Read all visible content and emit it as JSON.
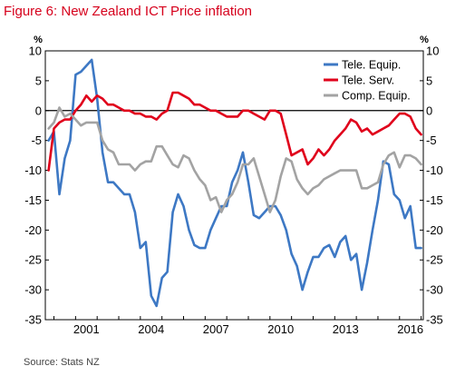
{
  "figure": {
    "title": "Figure 6: New Zealand ICT Price inflation",
    "source": "Source: Stats NZ"
  },
  "colors": {
    "title": "#d6001c",
    "tele_equip": "#3d78c4",
    "tele_serv": "#e0001b",
    "comp_equip": "#a3a3a3"
  },
  "chart_data": {
    "type": "line",
    "title": "",
    "xlabel": "",
    "ylabel": "%",
    "ylabel_right": "%",
    "xlim": [
      1999.6,
      2017.1
    ],
    "ylim": [
      -35,
      10
    ],
    "x_ticks": [
      2001,
      2004,
      2007,
      2010,
      2013,
      2016
    ],
    "x_tick_labels": [
      "2001",
      "2004",
      "2007",
      "2010",
      "2013",
      "2016"
    ],
    "y_ticks": [
      10,
      5,
      0,
      -5,
      -10,
      -15,
      -20,
      -25,
      -30,
      -35
    ],
    "y_tick_labels": [
      "10",
      "5",
      "0",
      "-5",
      "-10",
      "-15",
      "-20",
      "-25",
      "-30",
      "-35"
    ],
    "y_tick_labels_right": [
      "10",
      "5",
      "0",
      "-5",
      "-10",
      "-15",
      "-20",
      "-25",
      "-30",
      "-35"
    ],
    "zero_line": true,
    "grid": false,
    "legend_position": "top-right",
    "series": [
      {
        "name": "Tele. Equip.",
        "color": "#3d78c4",
        "x": [
          1999.75,
          2000.0,
          2000.25,
          2000.5,
          2000.75,
          2001.0,
          2001.25,
          2001.5,
          2001.75,
          2002.0,
          2002.25,
          2002.5,
          2002.75,
          2003.0,
          2003.25,
          2003.5,
          2003.75,
          2004.0,
          2004.25,
          2004.5,
          2004.75,
          2005.0,
          2005.25,
          2005.5,
          2005.75,
          2006.0,
          2006.25,
          2006.5,
          2006.75,
          2007.0,
          2007.25,
          2007.5,
          2007.75,
          2008.0,
          2008.25,
          2008.5,
          2008.75,
          2009.0,
          2009.25,
          2009.5,
          2009.75,
          2010.0,
          2010.25,
          2010.5,
          2010.75,
          2011.0,
          2011.25,
          2011.5,
          2011.75,
          2012.0,
          2012.25,
          2012.5,
          2012.75,
          2013.0,
          2013.25,
          2013.5,
          2013.75,
          2014.0,
          2014.25,
          2014.5,
          2014.75,
          2015.0,
          2015.25,
          2015.5,
          2015.75,
          2016.0,
          2016.25,
          2016.5,
          2016.75,
          2017.0
        ],
        "y": [
          -5,
          -3.5,
          -14,
          -8,
          -5,
          6,
          6.5,
          7.5,
          8.5,
          2,
          -7,
          -12,
          -12,
          -13,
          -14,
          -14,
          -17,
          -23,
          -22,
          -31,
          -32.7,
          -28,
          -27,
          -17,
          -14,
          -16,
          -20,
          -22.5,
          -23,
          -23,
          -20,
          -18,
          -16,
          -16,
          -12,
          -10,
          -7,
          -12,
          -17.5,
          -18,
          -17,
          -16,
          -16,
          -17.5,
          -20,
          -24,
          -26,
          -30,
          -27,
          -24.5,
          -24.5,
          -23,
          -22.5,
          -24.5,
          -22,
          -21,
          -25,
          -24,
          -30,
          -25.5,
          -20,
          -15,
          -8.5,
          -9,
          -14,
          -15,
          -18,
          -16,
          -23,
          -23
        ]
      },
      {
        "name": "Tele. Serv.",
        "color": "#e0001b",
        "x": [
          1999.75,
          2000.0,
          2000.25,
          2000.5,
          2000.75,
          2001.0,
          2001.25,
          2001.5,
          2001.75,
          2002.0,
          2002.25,
          2002.5,
          2002.75,
          2003.0,
          2003.25,
          2003.5,
          2003.75,
          2004.0,
          2004.25,
          2004.5,
          2004.75,
          2005.0,
          2005.25,
          2005.5,
          2005.75,
          2006.0,
          2006.25,
          2006.5,
          2006.75,
          2007.0,
          2007.25,
          2007.5,
          2007.75,
          2008.0,
          2008.25,
          2008.5,
          2008.75,
          2009.0,
          2009.25,
          2009.5,
          2009.75,
          2010.0,
          2010.25,
          2010.5,
          2010.75,
          2011.0,
          2011.25,
          2011.5,
          2011.75,
          2012.0,
          2012.25,
          2012.5,
          2012.75,
          2013.0,
          2013.25,
          2013.5,
          2013.75,
          2014.0,
          2014.25,
          2014.5,
          2014.75,
          2015.0,
          2015.25,
          2015.5,
          2015.75,
          2016.0,
          2016.25,
          2016.5,
          2016.75,
          2017.0
        ],
        "y": [
          -10,
          -3,
          -2,
          -1.5,
          -1.5,
          0,
          1,
          2.5,
          1.5,
          2.5,
          2,
          1,
          1,
          0.5,
          0,
          0,
          -0.5,
          -0.5,
          -1,
          -1,
          -1.5,
          -0.5,
          0,
          3,
          3,
          2.5,
          2,
          1,
          1,
          0.5,
          0,
          0,
          -0.5,
          -1,
          -1,
          -1,
          0,
          0,
          -0.5,
          -1,
          -1.5,
          0,
          0,
          -0.5,
          -4,
          -7.5,
          -7,
          -6.5,
          -9,
          -8,
          -6.5,
          -7.5,
          -6.5,
          -5,
          -4,
          -3,
          -1.5,
          -2,
          -3.5,
          -3,
          -4,
          -3.5,
          -3,
          -2.5,
          -1.5,
          -0.5,
          -0.5,
          -1,
          -3,
          -4
        ]
      },
      {
        "name": "Comp. Equip.",
        "color": "#a3a3a3",
        "x": [
          1999.75,
          2000.0,
          2000.25,
          2000.5,
          2000.75,
          2001.0,
          2001.25,
          2001.5,
          2001.75,
          2002.0,
          2002.25,
          2002.5,
          2002.75,
          2003.0,
          2003.25,
          2003.5,
          2003.75,
          2004.0,
          2004.25,
          2004.5,
          2004.75,
          2005.0,
          2005.25,
          2005.5,
          2005.75,
          2006.0,
          2006.25,
          2006.5,
          2006.75,
          2007.0,
          2007.25,
          2007.5,
          2007.75,
          2008.0,
          2008.25,
          2008.5,
          2008.75,
          2009.0,
          2009.25,
          2009.5,
          2009.75,
          2010.0,
          2010.25,
          2010.5,
          2010.75,
          2011.0,
          2011.25,
          2011.5,
          2011.75,
          2012.0,
          2012.25,
          2012.5,
          2012.75,
          2013.0,
          2013.25,
          2013.5,
          2013.75,
          2014.0,
          2014.25,
          2014.5,
          2014.75,
          2015.0,
          2015.25,
          2015.5,
          2015.75,
          2016.0,
          2016.25,
          2016.5,
          2016.75,
          2017.0
        ],
        "y": [
          -3,
          -2,
          0.5,
          -1,
          -0.5,
          -1.5,
          -2.5,
          -2,
          -2,
          -2,
          -5,
          -6.5,
          -7,
          -9,
          -9,
          -9,
          -10,
          -9,
          -8.5,
          -8.5,
          -6,
          -6,
          -7.5,
          -9,
          -9.5,
          -7.5,
          -8,
          -10,
          -11.5,
          -12.5,
          -15,
          -14.5,
          -17,
          -15,
          -14,
          -12,
          -9,
          -9,
          -8,
          -11,
          -14,
          -17,
          -15,
          -11,
          -8,
          -8.5,
          -11.5,
          -13,
          -14,
          -13,
          -12.5,
          -11.5,
          -11,
          -10.5,
          -10,
          -10,
          -10,
          -10,
          -13,
          -13,
          -12.5,
          -12,
          -9,
          -7.5,
          -7,
          -9.5,
          -7.5,
          -7.5,
          -8,
          -9
        ]
      }
    ]
  }
}
